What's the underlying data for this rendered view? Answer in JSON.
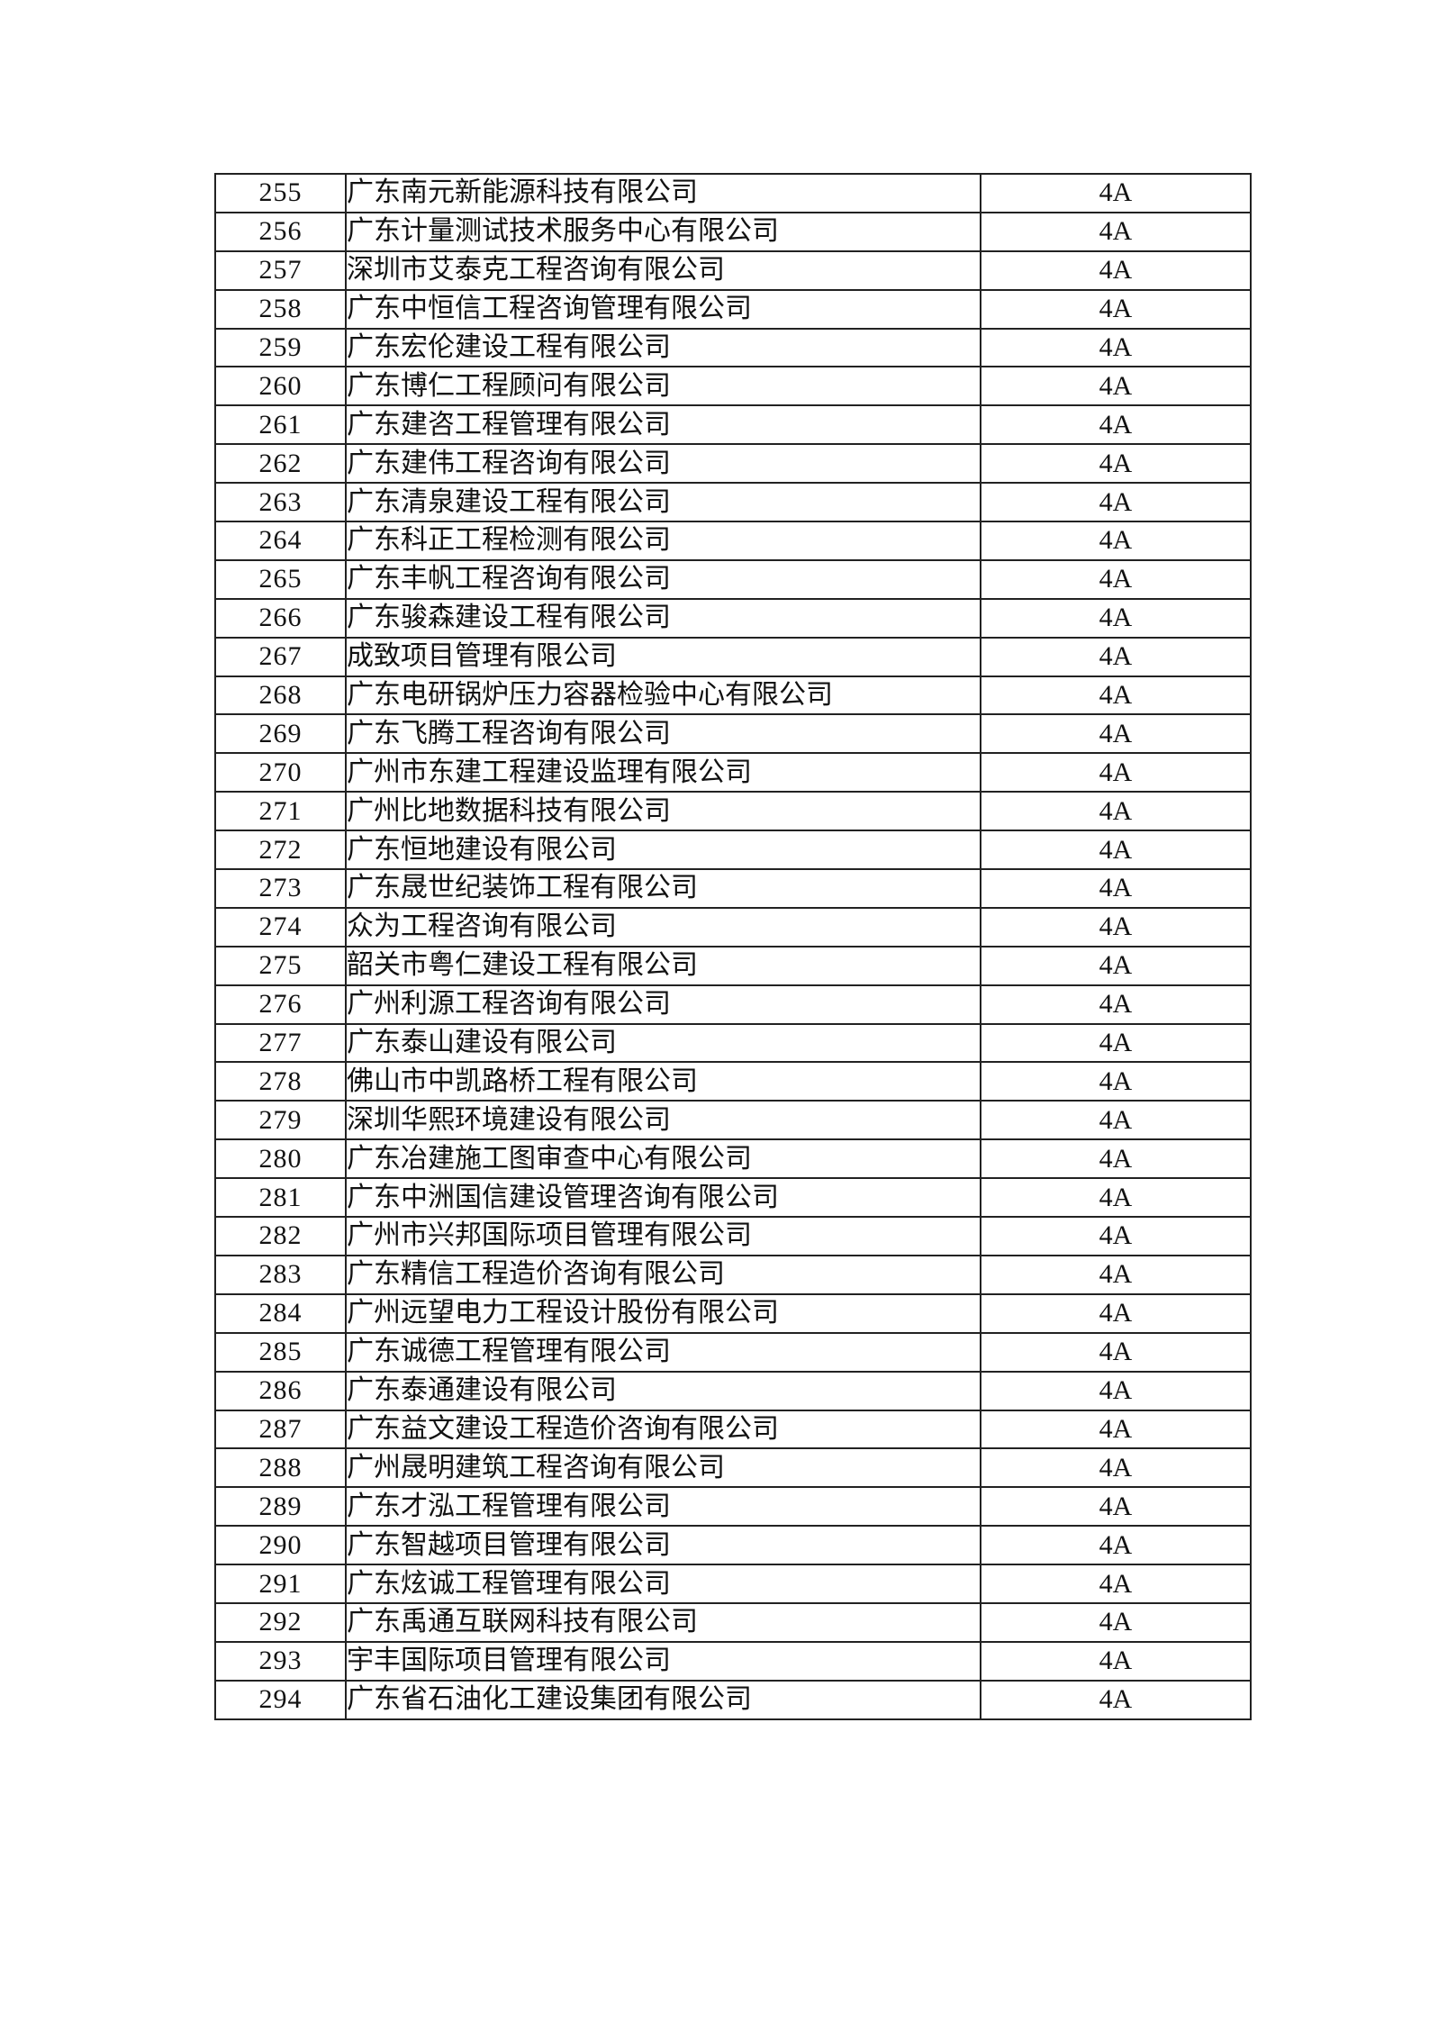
{
  "document": {
    "background_color": "#ffffff",
    "text_color": "#111111",
    "border_color": "#222222"
  },
  "table": {
    "rating_value_all_rows": "4A",
    "rows": [
      {
        "no": "255",
        "company": "广东南元新能源科技有限公司",
        "rating": "4A"
      },
      {
        "no": "256",
        "company": "广东计量测试技术服务中心有限公司",
        "rating": "4A"
      },
      {
        "no": "257",
        "company": "深圳市艾泰克工程咨询有限公司",
        "rating": "4A"
      },
      {
        "no": "258",
        "company": "广东中恒信工程咨询管理有限公司",
        "rating": "4A"
      },
      {
        "no": "259",
        "company": "广东宏伦建设工程有限公司",
        "rating": "4A"
      },
      {
        "no": "260",
        "company": "广东博仁工程顾问有限公司",
        "rating": "4A"
      },
      {
        "no": "261",
        "company": "广东建咨工程管理有限公司",
        "rating": "4A"
      },
      {
        "no": "262",
        "company": "广东建伟工程咨询有限公司",
        "rating": "4A"
      },
      {
        "no": "263",
        "company": "广东清泉建设工程有限公司",
        "rating": "4A"
      },
      {
        "no": "264",
        "company": "广东科正工程检测有限公司",
        "rating": "4A"
      },
      {
        "no": "265",
        "company": "广东丰帆工程咨询有限公司",
        "rating": "4A"
      },
      {
        "no": "266",
        "company": "广东骏森建设工程有限公司",
        "rating": "4A"
      },
      {
        "no": "267",
        "company": "成致项目管理有限公司",
        "rating": "4A"
      },
      {
        "no": "268",
        "company": "广东电研锅炉压力容器检验中心有限公司",
        "rating": "4A"
      },
      {
        "no": "269",
        "company": "广东飞腾工程咨询有限公司",
        "rating": "4A"
      },
      {
        "no": "270",
        "company": "广州市东建工程建设监理有限公司",
        "rating": "4A"
      },
      {
        "no": "271",
        "company": "广州比地数据科技有限公司",
        "rating": "4A"
      },
      {
        "no": "272",
        "company": "广东恒地建设有限公司",
        "rating": "4A"
      },
      {
        "no": "273",
        "company": "广东晟世纪装饰工程有限公司",
        "rating": "4A"
      },
      {
        "no": "274",
        "company": "众为工程咨询有限公司",
        "rating": "4A"
      },
      {
        "no": "275",
        "company": "韶关市粤仁建设工程有限公司",
        "rating": "4A"
      },
      {
        "no": "276",
        "company": "广州利源工程咨询有限公司",
        "rating": "4A"
      },
      {
        "no": "277",
        "company": "广东泰山建设有限公司",
        "rating": "4A"
      },
      {
        "no": "278",
        "company": "佛山市中凯路桥工程有限公司",
        "rating": "4A"
      },
      {
        "no": "279",
        "company": "深圳华熙环境建设有限公司",
        "rating": "4A"
      },
      {
        "no": "280",
        "company": "广东冶建施工图审查中心有限公司",
        "rating": "4A"
      },
      {
        "no": "281",
        "company": "广东中洲国信建设管理咨询有限公司",
        "rating": "4A"
      },
      {
        "no": "282",
        "company": "广州市兴邦国际项目管理有限公司",
        "rating": "4A"
      },
      {
        "no": "283",
        "company": "广东精信工程造价咨询有限公司",
        "rating": "4A"
      },
      {
        "no": "284",
        "company": "广州远望电力工程设计股份有限公司",
        "rating": "4A"
      },
      {
        "no": "285",
        "company": "广东诚德工程管理有限公司",
        "rating": "4A"
      },
      {
        "no": "286",
        "company": "广东泰通建设有限公司",
        "rating": "4A"
      },
      {
        "no": "287",
        "company": "广东益文建设工程造价咨询有限公司",
        "rating": "4A"
      },
      {
        "no": "288",
        "company": "广州晟明建筑工程咨询有限公司",
        "rating": "4A"
      },
      {
        "no": "289",
        "company": "广东才泓工程管理有限公司",
        "rating": "4A"
      },
      {
        "no": "290",
        "company": "广东智越项目管理有限公司",
        "rating": "4A"
      },
      {
        "no": "291",
        "company": "广东炫诚工程管理有限公司",
        "rating": "4A"
      },
      {
        "no": "292",
        "company": "广东禹通互联网科技有限公司",
        "rating": "4A"
      },
      {
        "no": "293",
        "company": "宇丰国际项目管理有限公司",
        "rating": "4A"
      },
      {
        "no": "294",
        "company": "广东省石油化工建设集团有限公司",
        "rating": "4A"
      }
    ]
  }
}
